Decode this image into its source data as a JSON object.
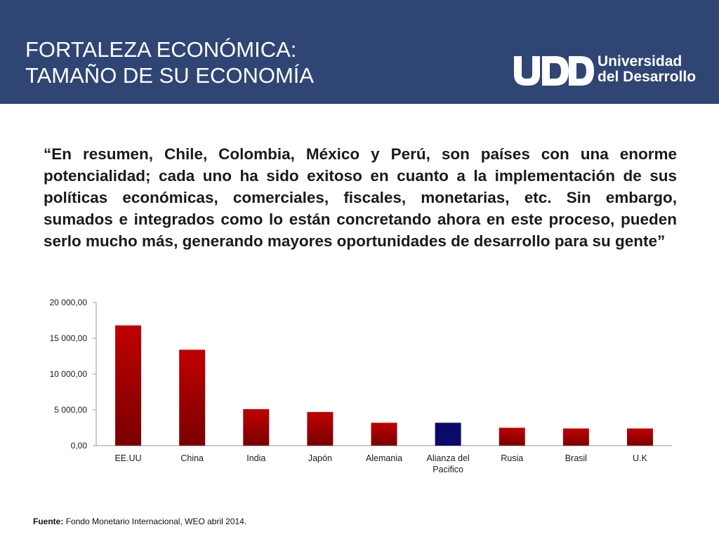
{
  "header": {
    "title_line1": "FORTALEZA ECONÓMICA:",
    "title_line2": "TAMAÑO DE SU ECONOMÍA",
    "background": "#2f4574"
  },
  "logo": {
    "line1": "Universidad",
    "line2": "del Desarrollo"
  },
  "quote": "“En resumen, Chile, Colombia, México y Perú, son países con una enorme potencialidad; cada uno ha sido exitoso en cuanto a la implementación de sus políticas económicas, comerciales, fiscales, monetarias, etc. Sin embargo, sumados e integrados como lo están concretando ahora en este proceso, pueden serlo mucho más, generando mayores oportunidades de desarrollo para su gente”",
  "source": {
    "label": "Fuente:",
    "text": "Fondo Monetario Internacional, WEO abril 2014."
  },
  "chart_data": {
    "type": "bar",
    "title": "",
    "xlabel": "",
    "ylabel": "",
    "categories": [
      "EE.UU",
      "China",
      "India",
      "Japón",
      "Alemania",
      "Alianza del Pacifico",
      "Rusia",
      "Brasil",
      "U.K"
    ],
    "values": [
      16800,
      13400,
      5100,
      4700,
      3200,
      3200,
      2500,
      2400,
      2400
    ],
    "ylim": [
      0,
      20000
    ],
    "yticks": [
      0,
      5000,
      10000,
      15000,
      20000
    ],
    "ytick_labels": [
      "0,00",
      "5 000,00",
      "10 000,00",
      "15 000,00",
      "20 000,00"
    ],
    "grid": false,
    "legend": "none",
    "colors": {
      "default_top": "#c00000",
      "default_bottom": "#7a0000",
      "highlight": "#0a0a6a",
      "highlight_category": "Alianza del Pacifico"
    }
  }
}
